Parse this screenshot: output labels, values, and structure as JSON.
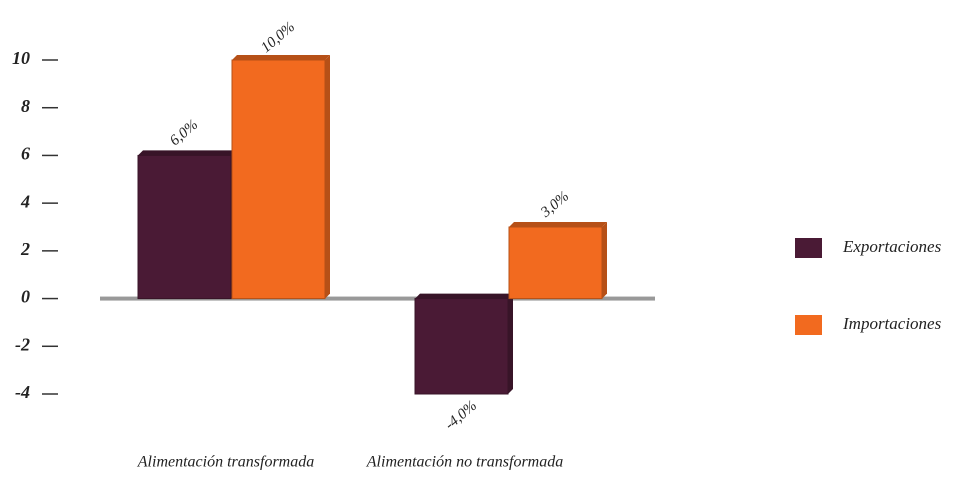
{
  "chart_data": {
    "type": "bar",
    "categories": [
      "Alimentación transformada",
      "Alimentación no transformada"
    ],
    "series": [
      {
        "name": "Exportaciones",
        "color": "#4a1a35",
        "values": [
          6,
          -4
        ],
        "value_labels": [
          "6,0%",
          "-4,0%"
        ]
      },
      {
        "name": "Importaciones",
        "color": "#f26a1f",
        "values": [
          10,
          3
        ],
        "value_labels": [
          "10,0%",
          "3,0%"
        ]
      }
    ],
    "ylim": [
      -4,
      10
    ],
    "yticks": [
      10,
      8,
      6,
      4,
      2,
      0,
      -2,
      -4
    ],
    "legend": "right"
  }
}
